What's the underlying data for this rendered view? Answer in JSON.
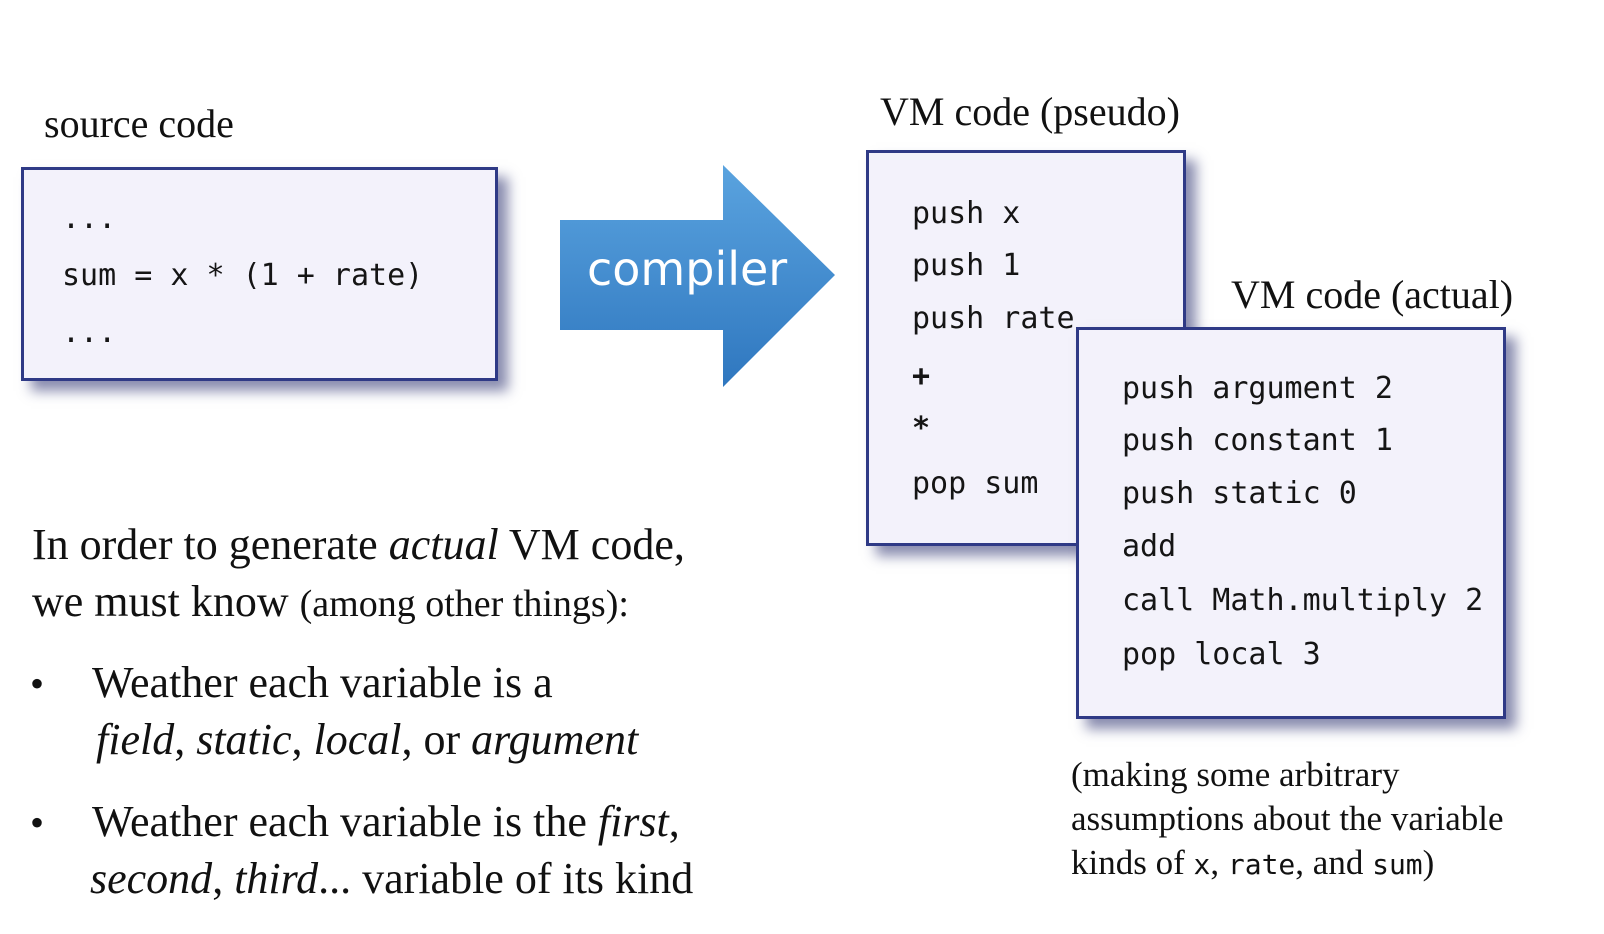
{
  "source": {
    "title": "source code",
    "lines": [
      "...",
      "sum = x * (1 + rate)",
      "..."
    ]
  },
  "arrow": {
    "label": "compiler",
    "color_light": "#5aa3df",
    "color_dark": "#2f77bf"
  },
  "vm_pseudo": {
    "title": "VM code (pseudo)",
    "lines": [
      "push x",
      "push 1",
      "push rate",
      "+",
      "*",
      "pop sum"
    ]
  },
  "vm_actual": {
    "title": "VM code (actual)",
    "lines": [
      "push argument 2",
      "push constant 1",
      "push static 0",
      "add",
      "call Math.multiply 2",
      "pop local 3"
    ]
  },
  "explanation": {
    "line1_pre": "In order to generate ",
    "line1_em": "actual",
    "line1_post": " VM code,",
    "line2_pre": "we must know ",
    "line2_small": "(among other things):",
    "bullet_symbol": "•",
    "bullet1": {
      "line1": "Weather each variable is a",
      "kinds": [
        "field",
        "static",
        "local",
        "argument"
      ],
      "sep1": ", ",
      "sep2": ", ",
      "sep3": ", or "
    },
    "bullet2": {
      "line1_pre": "Weather each variable is the ",
      "line1_em": "first",
      "line1_post": ",",
      "ord1": "second",
      "ord_sep": ", ",
      "ord2": "third",
      "line2_post": "... variable of its kind"
    }
  },
  "note": {
    "line1": "(making some arbitrary",
    "line2": "assumptions about the variable",
    "line3_pre": "kinds of ",
    "var1": "x",
    "sep1": ", ",
    "var2": "rate",
    "sep2": ", and ",
    "var3": "sum",
    "close": ")"
  },
  "colors": {
    "box_border": "#2f3a86",
    "box_fill": "#f3f2fb",
    "text": "#111111"
  }
}
